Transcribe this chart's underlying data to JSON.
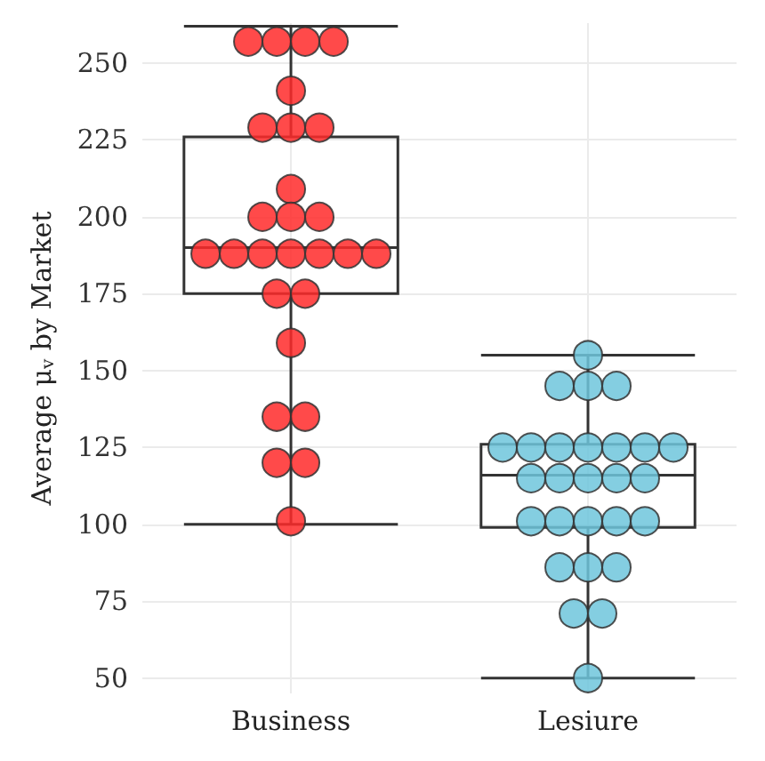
{
  "chart_data": {
    "type": "box",
    "ylabel": "Average μ$_{v}$ by Market",
    "categories": [
      "Business",
      "Lesiure"
    ],
    "boxes": [
      {
        "low": 100,
        "q1": 175,
        "median": 190,
        "q3": 226,
        "high": 262
      },
      {
        "low": 50,
        "q1": 99,
        "median": 116,
        "q3": 126,
        "high": 155
      }
    ],
    "series": [
      {
        "type": "scatter",
        "color": "#ff2a2a",
        "x": [
          "Business",
          "Business",
          "Business",
          "Business",
          "Business",
          "Business",
          "Business",
          "Business",
          "Business",
          "Business",
          "Business",
          "Business",
          "Business",
          "Business",
          "Business",
          "Business",
          "Business",
          "Business",
          "Business",
          "Business",
          "Business",
          "Business",
          "Business",
          "Business",
          "Business",
          "Business",
          "Business"
        ],
        "values": [
          257,
          257,
          257,
          257,
          241,
          229,
          229,
          229,
          209,
          200,
          200,
          200,
          188,
          188,
          188,
          188,
          188,
          188,
          188,
          175,
          175,
          159,
          135,
          135,
          120,
          120,
          101
        ]
      },
      {
        "type": "scatter",
        "color": "#6ec6dc",
        "x": [
          "Lesiure",
          "Lesiure",
          "Lesiure",
          "Lesiure",
          "Lesiure",
          "Lesiure",
          "Lesiure",
          "Lesiure",
          "Lesiure",
          "Lesiure",
          "Lesiure",
          "Lesiure",
          "Lesiure",
          "Lesiure",
          "Lesiure",
          "Lesiure",
          "Lesiure",
          "Lesiure",
          "Lesiure",
          "Lesiure",
          "Lesiure",
          "Lesiure",
          "Lesiure",
          "Lesiure",
          "Lesiure",
          "Lesiure",
          "Lesiure"
        ],
        "values": [
          155,
          145,
          145,
          145,
          125,
          125,
          125,
          125,
          125,
          125,
          125,
          115,
          115,
          115,
          115,
          115,
          101,
          101,
          101,
          101,
          101,
          86,
          86,
          86,
          71,
          71,
          50
        ]
      }
    ],
    "ylim": [
      45,
      263
    ],
    "yticks": [
      50,
      75,
      100,
      125,
      150,
      175,
      200,
      225,
      250
    ],
    "grid": true,
    "marker": "circle"
  }
}
